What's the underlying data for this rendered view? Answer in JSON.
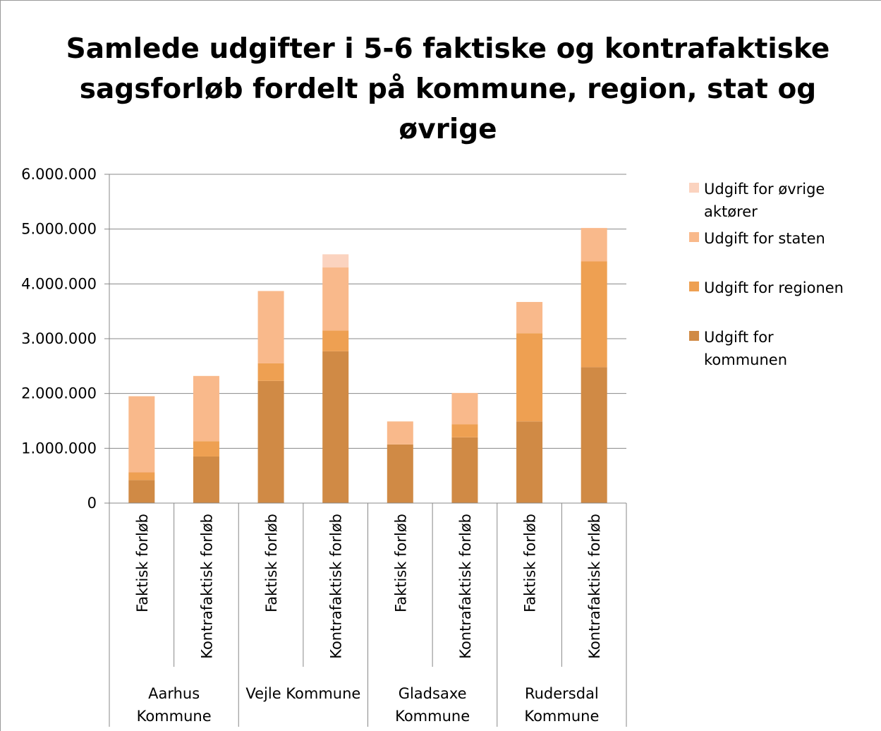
{
  "chart_data": {
    "type": "stacked_bar",
    "title": "Samlede udgifter i 5-6 faktiske og kontrafaktiske\nsagsforløb fordelt på kommune, region, stat og\nøvrige",
    "categories": [
      "Faktisk forløb",
      "Kontrafaktisk forløb",
      "Faktisk forløb",
      "Kontrafaktisk forløb",
      "Faktisk forløb",
      "Kontrafaktisk forløb",
      "Faktisk forløb",
      "Kontrafaktisk forløb"
    ],
    "groups": [
      "Aarhus\nKommune",
      "Vejle Kommune",
      "Gladsaxe\nKommune",
      "Rudersdal\nKommune"
    ],
    "series": [
      {
        "name": "Udgift for\nkommunen",
        "color": "#d08a45",
        "values": [
          420000,
          850000,
          2230000,
          2770000,
          1070000,
          1200000,
          1490000,
          2480000
        ]
      },
      {
        "name": "Udgift for regionen",
        "color": "#eea052",
        "values": [
          140000,
          280000,
          320000,
          380000,
          0,
          240000,
          1610000,
          1930000
        ]
      },
      {
        "name": "Udgift for staten",
        "color": "#f9b98b",
        "values": [
          1390000,
          1190000,
          1320000,
          1150000,
          420000,
          570000,
          570000,
          610000
        ]
      },
      {
        "name": "Udgift for øvrige\naktører",
        "color": "#fbd3bf",
        "values": [
          0,
          0,
          0,
          240000,
          0,
          0,
          0,
          0
        ]
      }
    ],
    "ylim": [
      0,
      6000000
    ],
    "yticks": [
      0,
      {
        "value": 1000000,
        "label": "1.000.000"
      },
      {
        "value": 2000000,
        "label": "2.000.000"
      },
      {
        "value": 3000000,
        "label": "3.000.000"
      },
      {
        "value": 4000000,
        "label": "4.000.000"
      },
      {
        "value": 5000000,
        "label": "5.000.000"
      },
      {
        "value": 6000000,
        "label": "6.000.000"
      }
    ],
    "grid": true,
    "legend": "right"
  }
}
